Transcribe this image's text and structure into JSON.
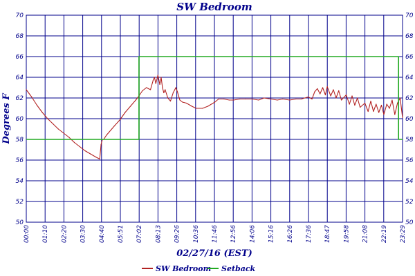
{
  "chart_data": {
    "type": "line",
    "title": "SW Bedroom",
    "xlabel": "02/27/16 (EST)",
    "ylabel": "Degrees F",
    "ylim": [
      50,
      70
    ],
    "yticks": [
      "50",
      "52",
      "54",
      "56",
      "58",
      "60",
      "62",
      "64",
      "66",
      "68",
      "70"
    ],
    "xlim_minutes": [
      0,
      1409
    ],
    "xticks": [
      "00:00",
      "01:10",
      "02:20",
      "03:30",
      "04:40",
      "05:51",
      "07:02",
      "08:13",
      "09:26",
      "10:36",
      "11:46",
      "12:56",
      "14:06",
      "15:16",
      "16:26",
      "17:36",
      "18:47",
      "19:58",
      "21:08",
      "22:19",
      "23:29"
    ],
    "grid": true,
    "legend_position": "bottom",
    "colors": {
      "axis_text": "#00008b",
      "grid": "#00008b",
      "sw_bedroom": "#b22222",
      "setback": "#22aa22"
    },
    "series": [
      {
        "name": "SW Bedroom",
        "color": "#b22222",
        "x": [
          "00:00",
          "00:20",
          "00:40",
          "01:00",
          "01:20",
          "01:40",
          "02:00",
          "02:20",
          "02:40",
          "03:00",
          "03:20",
          "03:40",
          "04:00",
          "04:20",
          "04:35",
          "04:40",
          "04:45",
          "04:50",
          "05:00",
          "05:10",
          "05:20",
          "05:30",
          "05:51",
          "06:10",
          "06:30",
          "06:50",
          "07:02",
          "07:15",
          "07:30",
          "07:45",
          "07:55",
          "08:00",
          "08:05",
          "08:13",
          "08:20",
          "08:25",
          "08:30",
          "08:35",
          "08:40",
          "08:50",
          "09:00",
          "09:10",
          "09:20",
          "09:26",
          "09:35",
          "09:45",
          "10:00",
          "10:20",
          "10:36",
          "11:00",
          "11:20",
          "11:46",
          "12:00",
          "12:20",
          "12:40",
          "12:56",
          "13:20",
          "13:40",
          "14:06",
          "14:30",
          "14:50",
          "15:16",
          "15:40",
          "16:00",
          "16:26",
          "16:50",
          "17:10",
          "17:36",
          "17:50",
          "18:00",
          "18:10",
          "18:20",
          "18:30",
          "18:40",
          "18:47",
          "19:00",
          "19:10",
          "19:20",
          "19:30",
          "19:40",
          "19:58",
          "20:10",
          "20:20",
          "20:30",
          "20:40",
          "20:50",
          "21:08",
          "21:20",
          "21:30",
          "21:40",
          "21:50",
          "22:00",
          "22:10",
          "22:19",
          "22:30",
          "22:40",
          "22:50",
          "23:00",
          "23:10",
          "23:20",
          "23:29"
        ],
        "y": [
          62.8,
          62.1,
          61.3,
          60.6,
          60.0,
          59.5,
          59.0,
          58.6,
          58.2,
          57.7,
          57.3,
          56.9,
          56.6,
          56.3,
          56.1,
          57.5,
          58.0,
          58.0,
          58.4,
          58.7,
          59.0,
          59.3,
          59.9,
          60.6,
          61.2,
          61.8,
          62.2,
          62.7,
          63.0,
          62.8,
          63.7,
          64.0,
          63.4,
          64.2,
          63.3,
          64.0,
          63.0,
          62.5,
          62.8,
          62.0,
          61.7,
          62.5,
          63.0,
          62.6,
          61.8,
          61.6,
          61.5,
          61.2,
          61.0,
          61.0,
          61.2,
          61.6,
          61.9,
          61.9,
          61.8,
          61.8,
          61.9,
          61.9,
          61.9,
          61.8,
          62.0,
          61.9,
          61.8,
          61.9,
          61.8,
          61.9,
          61.9,
          62.1,
          61.9,
          62.6,
          62.9,
          62.4,
          63.0,
          62.3,
          63.1,
          62.2,
          62.8,
          62.0,
          62.7,
          61.8,
          62.3,
          61.4,
          62.2,
          61.3,
          62.0,
          61.1,
          61.5,
          60.7,
          61.7,
          60.7,
          61.4,
          60.6,
          61.3,
          60.4,
          61.4,
          61.0,
          61.8,
          60.4,
          61.5,
          62.0,
          60.1
        ]
      },
      {
        "name": "Setback",
        "color": "#22aa22",
        "x": [
          "00:00",
          "07:02",
          "07:02",
          "23:14",
          "23:14",
          "23:29"
        ],
        "y": [
          58,
          58,
          66,
          66,
          58,
          58
        ]
      }
    ]
  }
}
